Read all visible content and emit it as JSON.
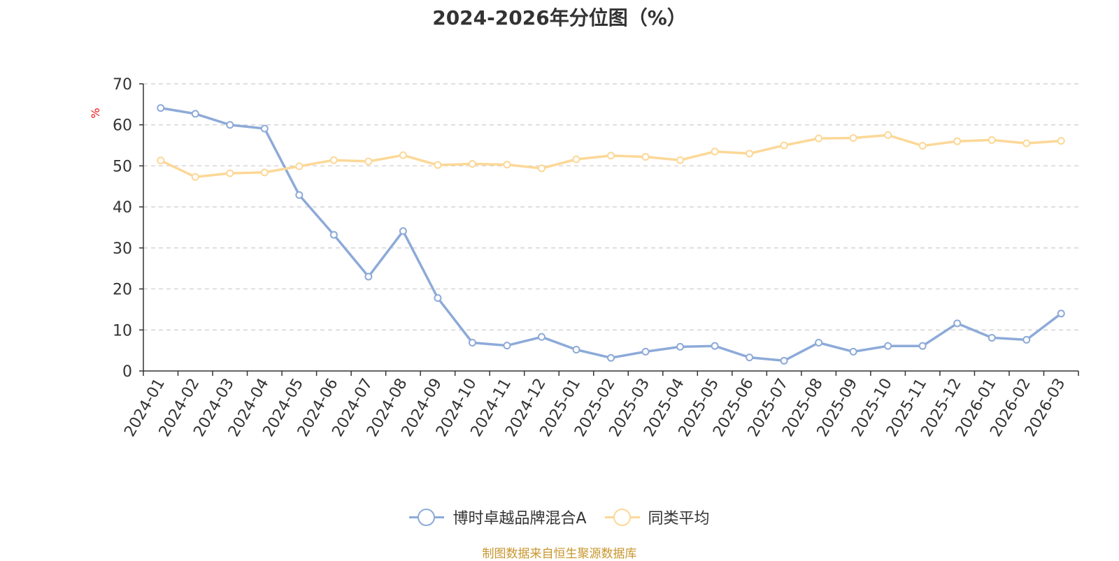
{
  "chart_data": {
    "type": "line",
    "title": "2024-2026年分位图（%）",
    "ylabel": "%",
    "ylim": [
      0,
      70
    ],
    "yticks": [
      0,
      10,
      20,
      30,
      40,
      50,
      60,
      70
    ],
    "grid": true,
    "legend_position": "bottom",
    "categories": [
      "2024-01",
      "2024-02",
      "2024-03",
      "2024-04",
      "2024-05",
      "2024-06",
      "2024-07",
      "2024-08",
      "2024-09",
      "2024-10",
      "2024-11",
      "2024-12",
      "2025-01",
      "2025-02",
      "2025-03",
      "2025-04",
      "2025-05",
      "2025-06",
      "2025-07",
      "2025-08",
      "2025-09",
      "2025-10",
      "2025-11",
      "2025-12",
      "2026-01",
      "2026-02",
      "2026-03"
    ],
    "series": [
      {
        "name": "博时卓越品牌混合A",
        "color": "#8daad8",
        "values": [
          64.1,
          62.7,
          60.0,
          59.1,
          42.9,
          33.2,
          23.0,
          34.1,
          17.8,
          6.9,
          6.2,
          8.3,
          5.2,
          3.2,
          4.7,
          5.9,
          6.1,
          3.3,
          2.5,
          6.9,
          4.7,
          6.1,
          6.1,
          11.6,
          8.1,
          7.6,
          14.0
        ]
      },
      {
        "name": "同类平均",
        "color": "#fcd897",
        "values": [
          51.3,
          47.3,
          48.2,
          48.4,
          49.9,
          51.4,
          51.1,
          52.6,
          50.2,
          50.5,
          50.3,
          49.4,
          51.6,
          52.5,
          52.2,
          51.4,
          53.5,
          53.0,
          55.0,
          56.7,
          56.8,
          57.5,
          54.9,
          56.0,
          56.3,
          55.5,
          56.1
        ]
      }
    ],
    "source": "制图数据来自恒生聚源数据库"
  }
}
